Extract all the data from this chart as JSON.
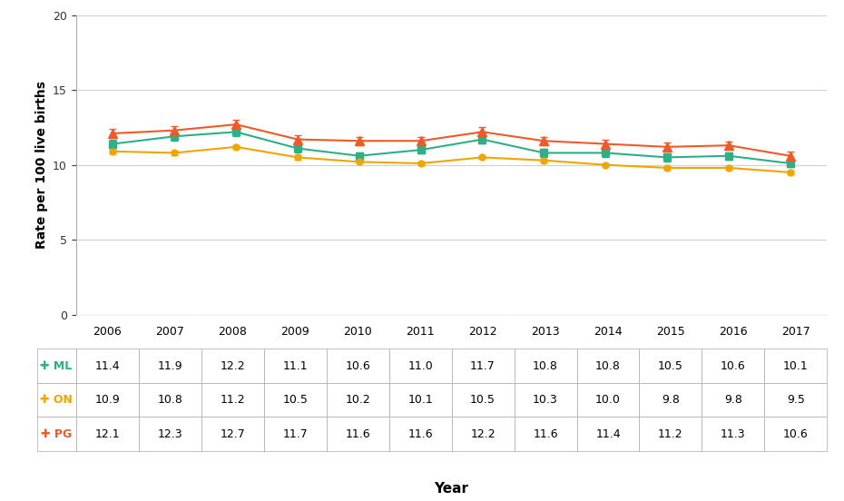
{
  "years": [
    2006,
    2007,
    2008,
    2009,
    2010,
    2011,
    2012,
    2013,
    2014,
    2015,
    2016,
    2017
  ],
  "ML": [
    11.4,
    11.9,
    12.2,
    11.1,
    10.6,
    11.0,
    11.7,
    10.8,
    10.8,
    10.5,
    10.6,
    10.1
  ],
  "ON": [
    10.9,
    10.8,
    11.2,
    10.5,
    10.2,
    10.1,
    10.5,
    10.3,
    10.0,
    9.8,
    9.8,
    9.5
  ],
  "PG": [
    12.1,
    12.3,
    12.7,
    11.7,
    11.6,
    11.6,
    12.2,
    11.6,
    11.4,
    11.2,
    11.3,
    10.6
  ],
  "ML_err": [
    0.28,
    0.28,
    0.28,
    0.28,
    0.25,
    0.25,
    0.28,
    0.25,
    0.25,
    0.25,
    0.25,
    0.25
  ],
  "ON_err": [
    0.13,
    0.13,
    0.13,
    0.13,
    0.11,
    0.11,
    0.11,
    0.11,
    0.11,
    0.11,
    0.11,
    0.11
  ],
  "PG_err": [
    0.33,
    0.3,
    0.33,
    0.3,
    0.28,
    0.28,
    0.33,
    0.28,
    0.28,
    0.28,
    0.28,
    0.28
  ],
  "ML_color": "#2daf87",
  "ON_color": "#f0a500",
  "PG_color": "#f05a28",
  "ylabel": "Rate per 100 live births",
  "xlabel": "Year",
  "ylim": [
    0,
    20
  ],
  "yticks": [
    0,
    5,
    10,
    15,
    20
  ],
  "background_color": "#ffffff",
  "grid_color": "#d0d0d0",
  "years_str": [
    "2006",
    "2007",
    "2008",
    "2009",
    "2010",
    "2011",
    "2012",
    "2013",
    "2014",
    "2015",
    "2016",
    "2017"
  ],
  "table_rows": {
    "ML": [
      "11.4",
      "11.9",
      "12.2",
      "11.1",
      "10.6",
      "11.0",
      "11.7",
      "10.8",
      "10.8",
      "10.5",
      "10.6",
      "10.1"
    ],
    "ON": [
      "10.9",
      "10.8",
      "11.2",
      "10.5",
      "10.2",
      "10.1",
      "10.5",
      "10.3",
      "10.0",
      "9.8",
      "9.8",
      "9.5"
    ],
    "PG": [
      "12.1",
      "12.3",
      "12.7",
      "11.7",
      "11.6",
      "11.6",
      "12.2",
      "11.6",
      "11.4",
      "11.2",
      "11.3",
      "10.6"
    ]
  },
  "row_labels": [
    "ML",
    "ON",
    "PG"
  ]
}
